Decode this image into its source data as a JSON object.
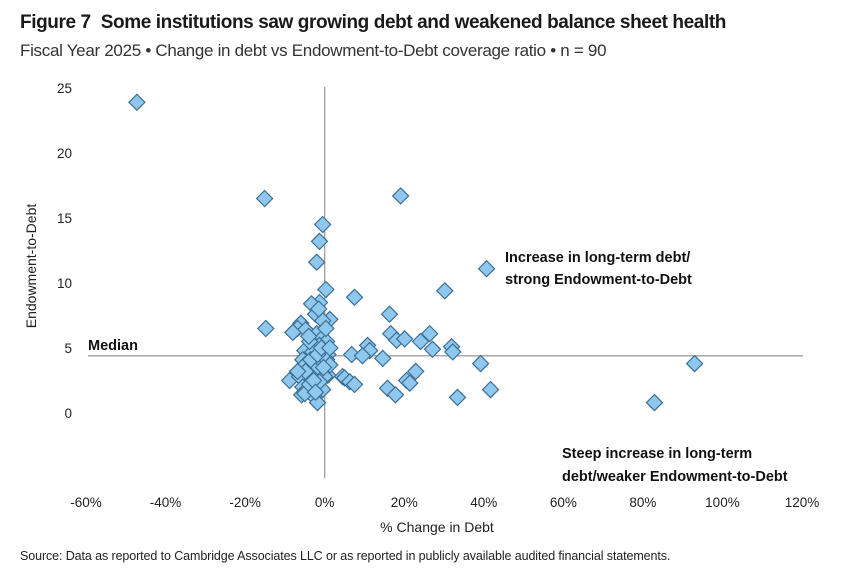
{
  "header": {
    "figure_label": "Figure 7",
    "title": "Some institutions saw growing debt and weakened balance sheet health",
    "subtitle": "Fiscal Year 2025 • Change in debt vs Endowment-to-Debt coverage ratio • n = 90"
  },
  "source": "Source: Data as reported to Cambridge Associates LLC or as reported in publicly available audited financial statements.",
  "colors": {
    "marker_fill": "#8ec8ee",
    "marker_stroke": "#3d6f92",
    "reference_line": "#a0a0a0"
  },
  "chart_data": {
    "type": "scatter",
    "title": "Some institutions saw growing debt and weakened balance sheet health",
    "xlabel": "% Change in Debt",
    "ylabel": "Endowment-to-Debt",
    "xlim": [
      -60,
      120
    ],
    "ylim": [
      -5,
      25
    ],
    "x_ticks": [
      -60,
      -40,
      -20,
      0,
      20,
      40,
      60,
      80,
      100,
      120
    ],
    "x_tick_labels": [
      "-60%",
      "-40%",
      "-20%",
      "0%",
      "20%",
      "40%",
      "60%",
      "80%",
      "100%",
      "120%"
    ],
    "y_ticks": [
      0,
      5,
      10,
      15,
      20,
      25
    ],
    "y_tick_labels": [
      "0",
      "5",
      "10",
      "15",
      "20",
      "25"
    ],
    "grid": false,
    "median": {
      "label": "Median",
      "value": 4.4
    },
    "annotations": [
      {
        "lines": [
          "Increase in long-term debt/",
          "strong Endowment-to-Debt"
        ]
      },
      {
        "lines": [
          "Steep increase in long-term",
          "debt/weaker Endowment-to-Debt"
        ]
      }
    ],
    "series": [
      {
        "name": "Institutions",
        "marker": "diamond",
        "points": [
          [
            -47.2,
            23.9
          ],
          [
            -15.1,
            16.5
          ],
          [
            19.1,
            16.7
          ],
          [
            -0.5,
            14.5
          ],
          [
            -1.3,
            13.2
          ],
          [
            -2.0,
            11.6
          ],
          [
            40.7,
            11.1
          ],
          [
            30.2,
            9.4
          ],
          [
            0.3,
            9.5
          ],
          [
            7.5,
            8.9
          ],
          [
            -1.3,
            8.5
          ],
          [
            -3.3,
            8.4
          ],
          [
            16.3,
            7.6
          ],
          [
            -2.3,
            7.6
          ],
          [
            1.3,
            7.2
          ],
          [
            -0.5,
            7.1
          ],
          [
            -6.0,
            6.9
          ],
          [
            -14.8,
            6.5
          ],
          [
            -6.8,
            6.5
          ],
          [
            -4.8,
            6.4
          ],
          [
            -8.0,
            6.2
          ],
          [
            -2.0,
            6.1
          ],
          [
            16.6,
            6.1
          ],
          [
            26.4,
            6.1
          ],
          [
            18.1,
            5.6
          ],
          [
            20.1,
            5.7
          ],
          [
            24.1,
            5.5
          ],
          [
            27.1,
            4.9
          ],
          [
            31.9,
            5.1
          ],
          [
            32.2,
            4.7
          ],
          [
            10.8,
            5.2
          ],
          [
            11.3,
            4.8
          ],
          [
            -0.5,
            5.8
          ],
          [
            0.5,
            5.5
          ],
          [
            -1.3,
            5.2
          ],
          [
            -5.0,
            4.8
          ],
          [
            -3.0,
            4.7
          ],
          [
            6.8,
            4.5
          ],
          [
            9.5,
            4.4
          ],
          [
            0.8,
            4.5
          ],
          [
            14.6,
            4.2
          ],
          [
            39.2,
            3.8
          ],
          [
            93.0,
            3.8
          ],
          [
            -5.5,
            4.1
          ],
          [
            -2.0,
            3.9
          ],
          [
            0.5,
            4.1
          ],
          [
            -4.3,
            3.5
          ],
          [
            -0.8,
            3.3
          ],
          [
            -5.0,
            3.7
          ],
          [
            -2.5,
            3.3
          ],
          [
            22.9,
            3.2
          ],
          [
            0.8,
            2.9
          ],
          [
            -8.8,
            2.5
          ],
          [
            -6.3,
            2.8
          ],
          [
            -3.3,
            2.8
          ],
          [
            0.0,
            2.8
          ],
          [
            4.5,
            2.8
          ],
          [
            5.0,
            2.7
          ],
          [
            6.3,
            2.4
          ],
          [
            7.5,
            2.2
          ],
          [
            20.6,
            2.5
          ],
          [
            21.4,
            2.3
          ],
          [
            -5.5,
            2.0
          ],
          [
            -1.8,
            1.9
          ],
          [
            -0.5,
            1.8
          ],
          [
            15.8,
            1.9
          ],
          [
            17.8,
            1.4
          ],
          [
            41.7,
            1.8
          ],
          [
            33.4,
            1.2
          ],
          [
            82.9,
            0.8
          ],
          [
            -5.8,
            1.4
          ],
          [
            -2.5,
            1.2
          ],
          [
            -1.8,
            0.8
          ],
          [
            -5.0,
            1.5
          ],
          [
            -3.8,
            2.2
          ],
          [
            -1.3,
            2.4
          ],
          [
            -3.5,
            4.1
          ],
          [
            -1.8,
            4.5
          ],
          [
            -3.8,
            5.5
          ],
          [
            -0.8,
            5.0
          ],
          [
            1.3,
            3.7
          ],
          [
            -2.8,
            2.5
          ],
          [
            -4.8,
            3.2
          ],
          [
            1.3,
            5.0
          ],
          [
            -6.8,
            3.2
          ],
          [
            -2.3,
            1.6
          ],
          [
            -1.5,
            8.0
          ],
          [
            0.3,
            6.5
          ],
          [
            -4.0,
            5.9
          ],
          [
            -0.3,
            3.5
          ]
        ]
      }
    ]
  }
}
